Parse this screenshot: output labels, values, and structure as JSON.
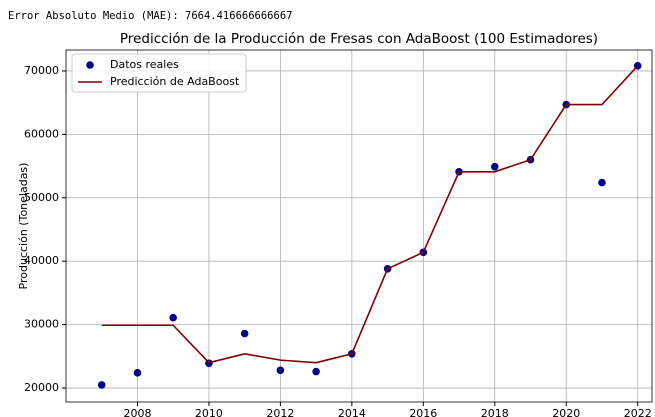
{
  "header": {
    "output": "Error Absoluto Medio (MAE): 7664.416666666667"
  },
  "chart_data": {
    "type": "line",
    "title": "Predicción de la Producción de Fresas con AdaBoost (100 Estimadores)",
    "y_label": "Producción (Toneladas)",
    "x": [
      2007,
      2008,
      2009,
      2010,
      2011,
      2012,
      2013,
      2014,
      2015,
      2016,
      2017,
      2018,
      2019,
      2020,
      2021,
      2022
    ],
    "series": [
      {
        "name": "Datos reales",
        "color": "#00008b",
        "style": "scatter",
        "values": [
          20500,
          22400,
          31100,
          23900,
          28600,
          22800,
          22600,
          25400,
          38800,
          41400,
          54100,
          54900,
          56000,
          64700,
          52400,
          70800
        ]
      },
      {
        "name": "Predicción de AdaBoost",
        "color": "#800000",
        "style": "line",
        "values": [
          29900,
          29900,
          29900,
          24000,
          25400,
          24400,
          24000,
          25400,
          38800,
          41400,
          54100,
          54100,
          56000,
          64700,
          64700,
          70800
        ]
      }
    ],
    "xlim": [
      2006,
      2022.4
    ],
    "xticks": [
      2008,
      2010,
      2012,
      2014,
      2016,
      2018,
      2020,
      2022
    ],
    "ylim": [
      17800,
      73300
    ],
    "yticks": [
      20000,
      30000,
      40000,
      50000,
      60000,
      70000
    ],
    "grid": true,
    "legend": "upper left"
  }
}
